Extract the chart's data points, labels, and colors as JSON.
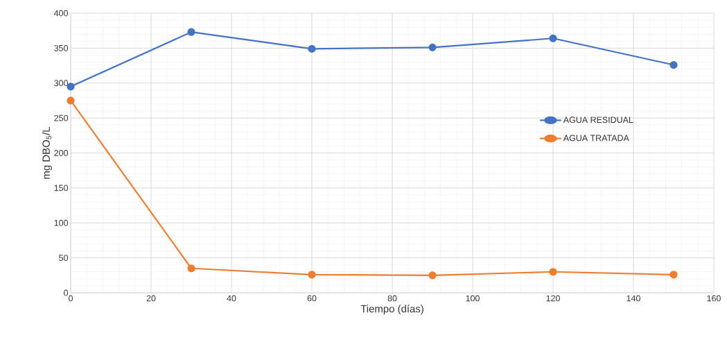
{
  "chart_data": {
    "type": "line",
    "xlabel": "Tiempo (días)",
    "ylabel": "mg DBO$_{5}$/L",
    "x": [
      0,
      30,
      60,
      90,
      120,
      150
    ],
    "series": [
      {
        "name": "AGUA RESIDUAL",
        "color": "#4472c4",
        "values": [
          295,
          373,
          349,
          351,
          364,
          326
        ]
      },
      {
        "name": "AGUA TRATADA",
        "color": "#ed7d31",
        "values": [
          275,
          35,
          26,
          25,
          30,
          26
        ]
      }
    ],
    "xlim": [
      0,
      160
    ],
    "xticks": [
      0,
      20,
      40,
      60,
      80,
      100,
      120,
      140,
      160
    ],
    "ylim": [
      0,
      400
    ],
    "yticks": [
      0,
      50,
      100,
      150,
      200,
      250,
      300,
      350,
      400
    ],
    "grid": true,
    "legend": "right",
    "marker": "circle",
    "line_style": "solid"
  }
}
